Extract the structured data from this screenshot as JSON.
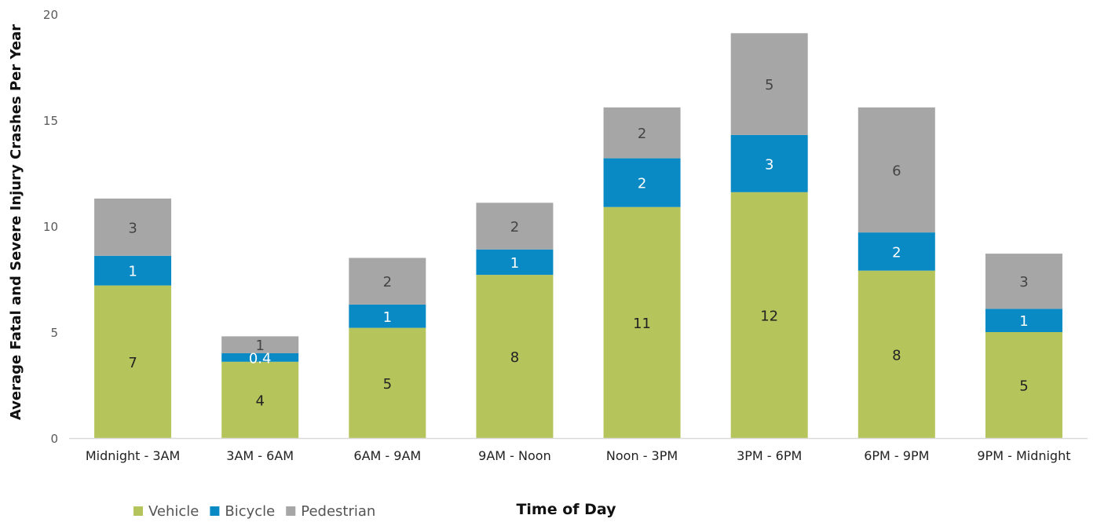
{
  "colors": {
    "vehicle": "#B6C45C",
    "bicycle": "#0A8AC4",
    "pedestrian": "#A6A6A6",
    "axis": "#D9D9D9"
  },
  "chart_data": {
    "type": "bar",
    "stacked": true,
    "title": "",
    "xlabel": "Time of Day",
    "ylabel": "Average Fatal and Severe Injury Crashes Per Year",
    "ylim": [
      0,
      20
    ],
    "yticks": [
      "0",
      "5",
      "10",
      "15",
      "20"
    ],
    "grid": false,
    "legend_position": "bottom-left",
    "categories": [
      "Midnight - 3AM",
      "3AM - 6AM",
      "6AM - 9AM",
      "9AM - Noon",
      "Noon - 3PM",
      "3PM - 6PM",
      "6PM - 9PM",
      "9PM - Midnight"
    ],
    "series": [
      {
        "name": "Vehicle",
        "values": [
          7.2,
          3.6,
          5.2,
          7.7,
          10.9,
          11.6,
          7.9,
          5.0
        ],
        "labels": [
          "7",
          "4",
          "5",
          "8",
          "11",
          "12",
          "8",
          "5"
        ]
      },
      {
        "name": "Bicycle",
        "values": [
          1.4,
          0.4,
          1.1,
          1.2,
          2.3,
          2.7,
          1.8,
          1.1
        ],
        "labels": [
          "1",
          "0.4",
          "1",
          "1",
          "2",
          "3",
          "2",
          "1"
        ]
      },
      {
        "name": "Pedestrian",
        "values": [
          2.7,
          0.8,
          2.2,
          2.2,
          2.4,
          4.8,
          5.9,
          2.6
        ],
        "labels": [
          "3",
          "1",
          "2",
          "2",
          "2",
          "5",
          "6",
          "3"
        ]
      }
    ]
  }
}
